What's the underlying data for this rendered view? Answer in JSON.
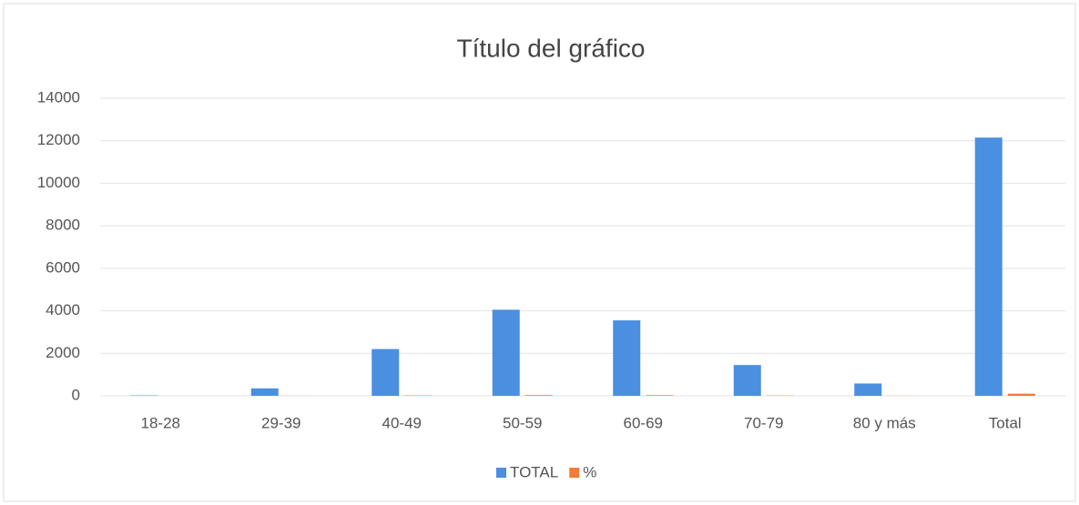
{
  "chart_data": {
    "type": "bar",
    "title": "Título del gráfico",
    "categories": [
      "18-28",
      "29-39",
      "40-49",
      "50-59",
      "60-69",
      "70-79",
      "80 y más",
      "Total"
    ],
    "series": [
      {
        "name": "TOTAL",
        "color": "#4a8fe0",
        "values": [
          20,
          350,
          2200,
          4050,
          3550,
          1450,
          580,
          12150
        ]
      },
      {
        "name": "%",
        "color": "#ee7d3a",
        "values": [
          0.2,
          2.9,
          18.1,
          33.3,
          29.2,
          11.9,
          4.8,
          100
        ]
      }
    ],
    "ylim": [
      0,
      14000
    ],
    "yticks": [
      0,
      2000,
      4000,
      6000,
      8000,
      10000,
      12000,
      14000
    ],
    "grid": true,
    "legend": "bottom"
  }
}
